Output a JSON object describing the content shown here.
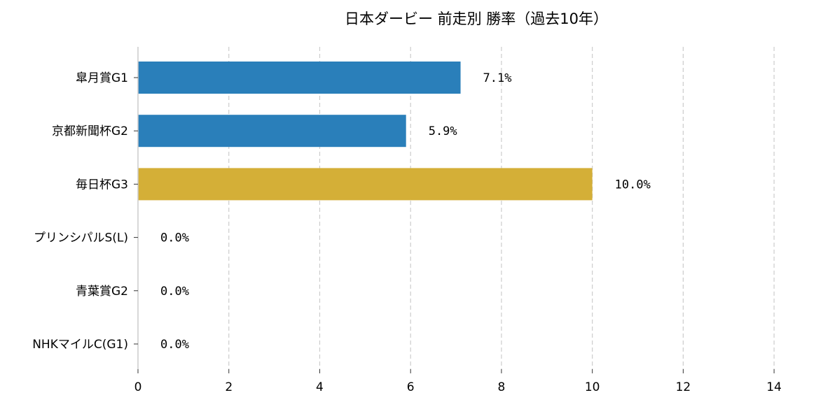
{
  "chart_data": {
    "type": "bar",
    "orientation": "horizontal",
    "title": "日本ダービー 前走別 勝率（過去10年）",
    "xlabel": "",
    "ylabel": "",
    "categories": [
      "皐月賞G1",
      "京都新聞杯G2",
      "毎日杯G3",
      "プリンシパルS(L)",
      "青葉賞G2",
      "NHKマイルC(G1)"
    ],
    "values": [
      7.1,
      5.9,
      10.0,
      0.0,
      0.0,
      0.0
    ],
    "data_labels": [
      "7.1%",
      "5.9%",
      "10.0%",
      "0.0%",
      "0.0%",
      "0.0%"
    ],
    "bar_colors": [
      "#2a7fba",
      "#2a7fba",
      "#d4af37",
      "#2a7fba",
      "#2a7fba",
      "#2a7fba"
    ],
    "xlim": [
      0,
      15
    ],
    "xticks": [
      0,
      2,
      4,
      6,
      8,
      10,
      12,
      14
    ],
    "grid": "vertical dashed",
    "legend": "none"
  }
}
